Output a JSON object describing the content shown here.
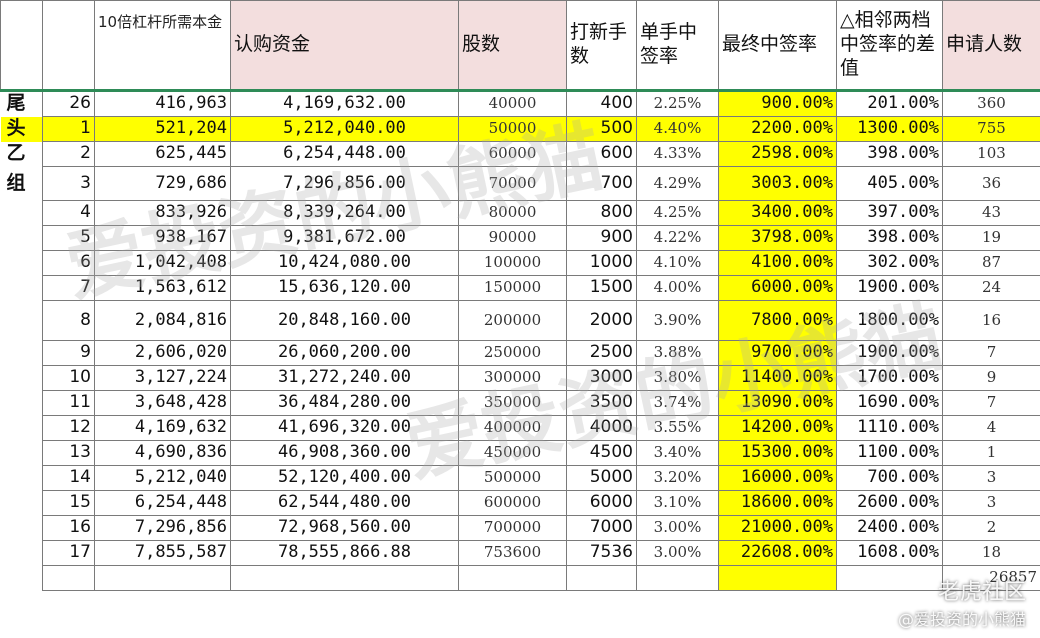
{
  "headers": {
    "group_col": "",
    "index_col": "",
    "capital": "10倍杠杆所需本金",
    "subscription": "认购资金",
    "shares": "股数",
    "lots": "打新手数",
    "single_rate": "单手中签率",
    "final_rate": "最终中签率",
    "diff": "△相邻两档中签率的差值",
    "applicants": "申请人数"
  },
  "group_labels": {
    "tail": "尾",
    "head": "头",
    "group_b_1": "乙",
    "group_b_2": "组"
  },
  "rows": [
    {
      "idx": "26",
      "capital": "416,963",
      "subscription": "4,169,632.00",
      "shares": "40000",
      "lots": "400",
      "single": "2.25%",
      "final": "900.00%",
      "diff": "201.00%",
      "applicants": "360"
    },
    {
      "idx": "1",
      "capital": "521,204",
      "subscription": "5,212,040.00",
      "shares": "50000",
      "lots": "500",
      "single": "4.40%",
      "final": "2200.00%",
      "diff": "1300.00%",
      "applicants": "755"
    },
    {
      "idx": "2",
      "capital": "625,445",
      "subscription": "6,254,448.00",
      "shares": "60000",
      "lots": "600",
      "single": "4.33%",
      "final": "2598.00%",
      "diff": "398.00%",
      "applicants": "103"
    },
    {
      "idx": "3",
      "capital": "729,686",
      "subscription": "7,296,856.00",
      "shares": "70000",
      "lots": "700",
      "single": "4.29%",
      "final": "3003.00%",
      "diff": "405.00%",
      "applicants": "36"
    },
    {
      "idx": "4",
      "capital": "833,926",
      "subscription": "8,339,264.00",
      "shares": "80000",
      "lots": "800",
      "single": "4.25%",
      "final": "3400.00%",
      "diff": "397.00%",
      "applicants": "43"
    },
    {
      "idx": "5",
      "capital": "938,167",
      "subscription": "9,381,672.00",
      "shares": "90000",
      "lots": "900",
      "single": "4.22%",
      "final": "3798.00%",
      "diff": "398.00%",
      "applicants": "19"
    },
    {
      "idx": "6",
      "capital": "1,042,408",
      "subscription": "10,424,080.00",
      "shares": "100000",
      "lots": "1000",
      "single": "4.10%",
      "final": "4100.00%",
      "diff": "302.00%",
      "applicants": "87"
    },
    {
      "idx": "7",
      "capital": "1,563,612",
      "subscription": "15,636,120.00",
      "shares": "150000",
      "lots": "1500",
      "single": "4.00%",
      "final": "6000.00%",
      "diff": "1900.00%",
      "applicants": "24"
    },
    {
      "idx": "8",
      "capital": "2,084,816",
      "subscription": "20,848,160.00",
      "shares": "200000",
      "lots": "2000",
      "single": "3.90%",
      "final": "7800.00%",
      "diff": "1800.00%",
      "applicants": "16"
    },
    {
      "idx": "9",
      "capital": "2,606,020",
      "subscription": "26,060,200.00",
      "shares": "250000",
      "lots": "2500",
      "single": "3.88%",
      "final": "9700.00%",
      "diff": "1900.00%",
      "applicants": "7"
    },
    {
      "idx": "10",
      "capital": "3,127,224",
      "subscription": "31,272,240.00",
      "shares": "300000",
      "lots": "3000",
      "single": "3.80%",
      "final": "11400.00%",
      "diff": "1700.00%",
      "applicants": "9"
    },
    {
      "idx": "11",
      "capital": "3,648,428",
      "subscription": "36,484,280.00",
      "shares": "350000",
      "lots": "3500",
      "single": "3.74%",
      "final": "13090.00%",
      "diff": "1690.00%",
      "applicants": "7"
    },
    {
      "idx": "12",
      "capital": "4,169,632",
      "subscription": "41,696,320.00",
      "shares": "400000",
      "lots": "4000",
      "single": "3.55%",
      "final": "14200.00%",
      "diff": "1110.00%",
      "applicants": "4"
    },
    {
      "idx": "13",
      "capital": "4,690,836",
      "subscription": "46,908,360.00",
      "shares": "450000",
      "lots": "4500",
      "single": "3.40%",
      "final": "15300.00%",
      "diff": "1100.00%",
      "applicants": "1"
    },
    {
      "idx": "14",
      "capital": "5,212,040",
      "subscription": "52,120,400.00",
      "shares": "500000",
      "lots": "5000",
      "single": "3.20%",
      "final": "16000.00%",
      "diff": "700.00%",
      "applicants": "3"
    },
    {
      "idx": "15",
      "capital": "6,254,448",
      "subscription": "62,544,480.00",
      "shares": "600000",
      "lots": "6000",
      "single": "3.10%",
      "final": "18600.00%",
      "diff": "2600.00%",
      "applicants": "3"
    },
    {
      "idx": "16",
      "capital": "7,296,856",
      "subscription": "72,968,560.00",
      "shares": "700000",
      "lots": "7000",
      "single": "3.00%",
      "final": "21000.00%",
      "diff": "2400.00%",
      "applicants": "2"
    },
    {
      "idx": "17",
      "capital": "7,855,587",
      "subscription": "78,555,866.88",
      "shares": "753600",
      "lots": "7536",
      "single": "3.00%",
      "final": "22608.00%",
      "diff": "1608.00%",
      "applicants": "18"
    }
  ],
  "total_applicants": "26857",
  "watermark": "爱投资的小熊猫",
  "brand": "老虎社区",
  "brand_sub": "@爱投资的小熊猫",
  "colors": {
    "highlight": "#ffff00",
    "header_pink": "#f3dede",
    "top_border": "#2e8b57"
  }
}
